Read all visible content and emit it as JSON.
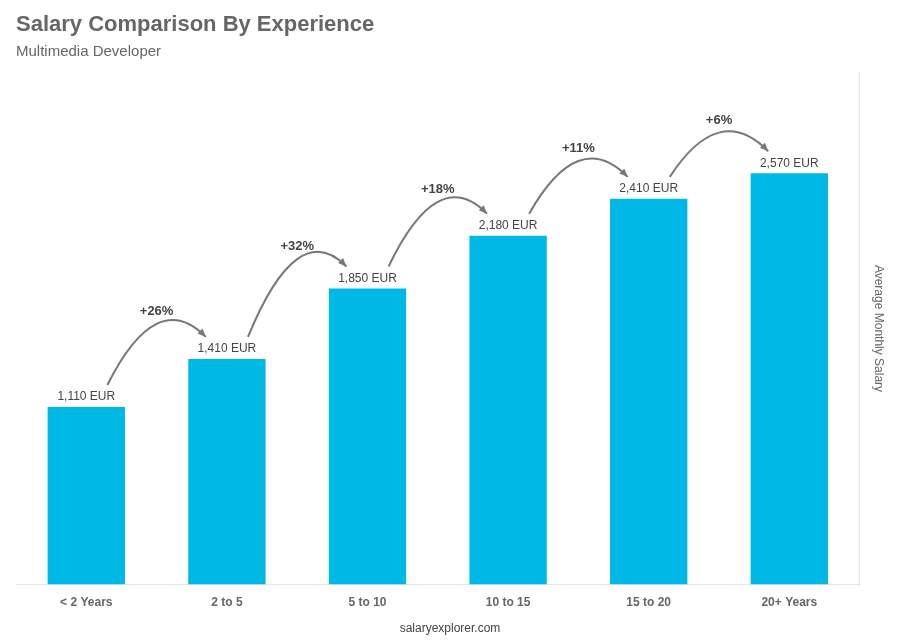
{
  "chart_data": {
    "type": "bar",
    "title": "Salary Comparison By Experience",
    "subtitle": "Multimedia Developer",
    "ylabel": "Average Monthly Salary",
    "categories": [
      "< 2 Years",
      "2 to 5",
      "5 to 10",
      "10 to 15",
      "15 to 20",
      "20+ Years"
    ],
    "values": [
      1110,
      1410,
      1850,
      2180,
      2410,
      2570
    ],
    "value_labels": [
      "1,110 EUR",
      "1,410 EUR",
      "1,850 EUR",
      "2,180 EUR",
      "2,410 EUR",
      "2,570 EUR"
    ],
    "data_labels": true,
    "color": "#00b8e6",
    "ylim": [
      0,
      3200
    ],
    "grid": false,
    "tick_labels": "x",
    "annotations": [
      {
        "text": "+26%",
        "from": "< 2 Years",
        "to": "2 to 5"
      },
      {
        "text": "+32%",
        "from": "2 to 5",
        "to": "5 to 10"
      },
      {
        "text": "+18%",
        "from": "5 to 10",
        "to": "10 to 15"
      },
      {
        "text": "+11%",
        "from": "10 to 15",
        "to": "15 to 20"
      },
      {
        "text": "+6%",
        "from": "15 to 20",
        "to": "20+ Years"
      }
    ],
    "footer": "salaryexplorer.com"
  }
}
